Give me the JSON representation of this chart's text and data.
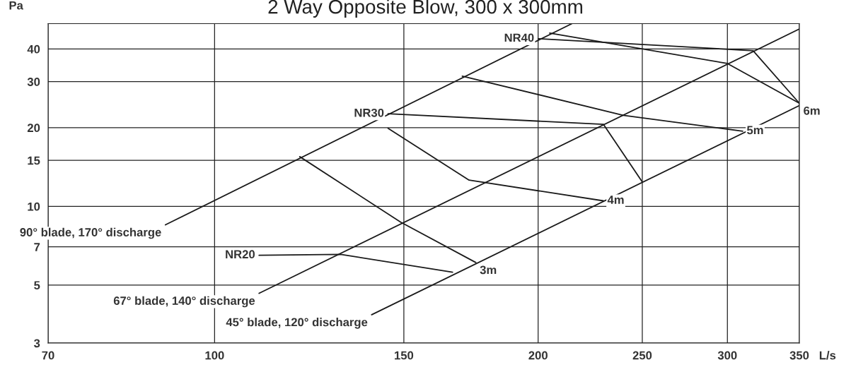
{
  "chart_data": {
    "type": "line",
    "title": "2 Way Opposite Blow, 300 x 300mm",
    "xlabel": "L/s",
    "ylabel": "Pa",
    "log": "xy",
    "xlim": [
      70,
      350
    ],
    "xticks": [
      70,
      100,
      150,
      200,
      250,
      300,
      350
    ],
    "ylim": [
      3,
      50
    ],
    "yticks": [
      3,
      5,
      7,
      10,
      15,
      20,
      30,
      40
    ],
    "grid": true,
    "legend": false,
    "marker": "none",
    "line_style": "solid",
    "series": [
      {
        "name": "90° blade, 170° discharge",
        "color": "#1a1a1a",
        "x": [
          215,
          90
        ],
        "values": [
          50,
          8.5
        ]
      },
      {
        "name": "67° blade, 140° discharge",
        "color": "#1a1a1a",
        "x": [
          350,
          110
        ],
        "values": [
          47.7,
          4.65
        ]
      },
      {
        "name": "45° blade, 120° discharge",
        "color": "#1a1a1a",
        "x": [
          350,
          140
        ],
        "values": [
          24.3,
          3.85
        ]
      },
      {
        "name": "NR20",
        "color": "#1a1a1a",
        "x": [
          166.5,
          131,
          110
        ],
        "values": [
          5.6,
          6.55,
          6.5
        ]
      },
      {
        "name": "NR30",
        "color": "#1a1a1a",
        "x": [
          250,
          230,
          145
        ],
        "values": [
          12.4,
          20.6,
          22.6
        ]
      },
      {
        "name": "NR40",
        "color": "#1a1a1a",
        "x": [
          350,
          317,
          200
        ],
        "values": [
          24.8,
          39.4,
          43.8
        ]
      },
      {
        "name": "3m",
        "color": "#1a1a1a",
        "x": [
          120,
          149,
          175
        ],
        "values": [
          15.5,
          8.7,
          6.1
        ]
      },
      {
        "name": "4m",
        "color": "#1a1a1a",
        "x": [
          145,
          172.5,
          230
        ],
        "values": [
          19.9,
          12.6,
          10.5
        ]
      },
      {
        "name": "5m",
        "color": "#1a1a1a",
        "x": [
          170,
          240,
          310
        ],
        "values": [
          31.5,
          22.3,
          19.4
        ]
      },
      {
        "name": "6m",
        "color": "#1a1a1a",
        "x": [
          205,
          300,
          350
        ],
        "values": [
          46,
          35.2,
          24.8
        ]
      }
    ]
  }
}
